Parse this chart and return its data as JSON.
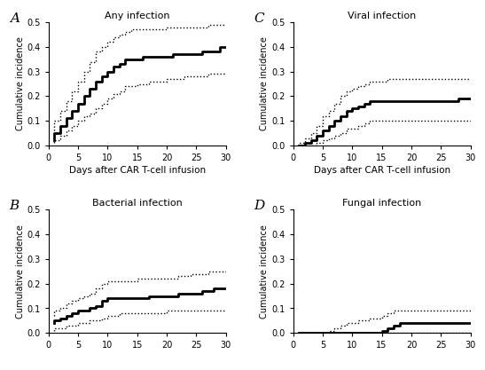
{
  "panels": [
    {
      "label": "A",
      "title": "Any infection",
      "xlabel": "Days after CAR T-cell infusion",
      "ylabel": "Cumulative incidence",
      "show_xlabel": true,
      "main": {
        "x": [
          1,
          2,
          3,
          4,
          5,
          6,
          7,
          8,
          9,
          10,
          11,
          12,
          13,
          14,
          15,
          16,
          17,
          18,
          19,
          20,
          21,
          22,
          23,
          24,
          25,
          26,
          27,
          28,
          29,
          30
        ],
        "y": [
          0.02,
          0.05,
          0.08,
          0.11,
          0.14,
          0.17,
          0.2,
          0.23,
          0.26,
          0.28,
          0.3,
          0.32,
          0.33,
          0.35,
          0.35,
          0.35,
          0.36,
          0.36,
          0.36,
          0.36,
          0.36,
          0.37,
          0.37,
          0.37,
          0.37,
          0.37,
          0.38,
          0.38,
          0.38,
          0.4
        ]
      },
      "upper": {
        "x": [
          1,
          2,
          3,
          4,
          5,
          6,
          7,
          8,
          9,
          10,
          11,
          12,
          13,
          14,
          15,
          16,
          17,
          18,
          19,
          20,
          21,
          22,
          23,
          24,
          25,
          26,
          27,
          28,
          29,
          30
        ],
        "y": [
          0.06,
          0.1,
          0.14,
          0.18,
          0.22,
          0.26,
          0.3,
          0.34,
          0.38,
          0.4,
          0.42,
          0.44,
          0.45,
          0.46,
          0.47,
          0.47,
          0.47,
          0.47,
          0.47,
          0.47,
          0.48,
          0.48,
          0.48,
          0.48,
          0.48,
          0.48,
          0.48,
          0.49,
          0.49,
          0.49
        ]
      },
      "lower": {
        "x": [
          1,
          2,
          3,
          4,
          5,
          6,
          7,
          8,
          9,
          10,
          11,
          12,
          13,
          14,
          15,
          16,
          17,
          18,
          19,
          20,
          21,
          22,
          23,
          24,
          25,
          26,
          27,
          28,
          29,
          30
        ],
        "y": [
          0.01,
          0.02,
          0.04,
          0.06,
          0.08,
          0.1,
          0.12,
          0.13,
          0.15,
          0.17,
          0.19,
          0.21,
          0.22,
          0.24,
          0.24,
          0.25,
          0.25,
          0.26,
          0.26,
          0.26,
          0.27,
          0.27,
          0.27,
          0.28,
          0.28,
          0.28,
          0.28,
          0.29,
          0.29,
          0.29
        ]
      },
      "ylim": [
        0,
        0.5
      ],
      "yticks": [
        0.0,
        0.1,
        0.2,
        0.3,
        0.4,
        0.5
      ]
    },
    {
      "label": "C",
      "title": "Viral infection",
      "xlabel": "Days after CAR T-cell infusion",
      "ylabel": "Cumulative incidence",
      "show_xlabel": true,
      "main": {
        "x": [
          1,
          2,
          3,
          4,
          5,
          6,
          7,
          8,
          9,
          10,
          11,
          12,
          13,
          14,
          15,
          16,
          17,
          18,
          19,
          20,
          21,
          22,
          23,
          24,
          25,
          26,
          27,
          28,
          29,
          30
        ],
        "y": [
          0.0,
          0.0,
          0.01,
          0.02,
          0.04,
          0.06,
          0.08,
          0.1,
          0.12,
          0.14,
          0.15,
          0.16,
          0.17,
          0.18,
          0.18,
          0.18,
          0.18,
          0.18,
          0.18,
          0.18,
          0.18,
          0.18,
          0.18,
          0.18,
          0.18,
          0.18,
          0.18,
          0.18,
          0.19,
          0.19
        ]
      },
      "upper": {
        "x": [
          1,
          2,
          3,
          4,
          5,
          6,
          7,
          8,
          9,
          10,
          11,
          12,
          13,
          14,
          15,
          16,
          17,
          18,
          19,
          20,
          21,
          22,
          23,
          24,
          25,
          26,
          27,
          28,
          29,
          30
        ],
        "y": [
          0.0,
          0.01,
          0.03,
          0.05,
          0.08,
          0.12,
          0.14,
          0.17,
          0.2,
          0.22,
          0.23,
          0.24,
          0.25,
          0.26,
          0.26,
          0.26,
          0.27,
          0.27,
          0.27,
          0.27,
          0.27,
          0.27,
          0.27,
          0.27,
          0.27,
          0.27,
          0.27,
          0.27,
          0.27,
          0.27
        ]
      },
      "lower": {
        "x": [
          1,
          2,
          3,
          4,
          5,
          6,
          7,
          8,
          9,
          10,
          11,
          12,
          13,
          14,
          15,
          16,
          17,
          18,
          19,
          20,
          21,
          22,
          23,
          24,
          25,
          26,
          27,
          28,
          29,
          30
        ],
        "y": [
          0.0,
          0.0,
          0.0,
          0.0,
          0.01,
          0.02,
          0.03,
          0.04,
          0.05,
          0.07,
          0.07,
          0.08,
          0.09,
          0.1,
          0.1,
          0.1,
          0.1,
          0.1,
          0.1,
          0.1,
          0.1,
          0.1,
          0.1,
          0.1,
          0.1,
          0.1,
          0.1,
          0.1,
          0.1,
          0.1
        ]
      },
      "ylim": [
        0,
        0.5
      ],
      "yticks": [
        0.0,
        0.1,
        0.2,
        0.3,
        0.4,
        0.5
      ]
    },
    {
      "label": "B",
      "title": "Bacterial infection",
      "xlabel": "",
      "ylabel": "Cumulative incidence",
      "show_xlabel": false,
      "main": {
        "x": [
          1,
          2,
          3,
          4,
          5,
          6,
          7,
          8,
          9,
          10,
          11,
          12,
          13,
          14,
          15,
          16,
          17,
          18,
          19,
          20,
          21,
          22,
          23,
          24,
          25,
          26,
          27,
          28,
          29,
          30
        ],
        "y": [
          0.04,
          0.05,
          0.06,
          0.07,
          0.08,
          0.09,
          0.09,
          0.1,
          0.11,
          0.13,
          0.14,
          0.14,
          0.14,
          0.14,
          0.14,
          0.14,
          0.14,
          0.15,
          0.15,
          0.15,
          0.15,
          0.15,
          0.16,
          0.16,
          0.16,
          0.16,
          0.17,
          0.17,
          0.18,
          0.18
        ]
      },
      "upper": {
        "x": [
          1,
          2,
          3,
          4,
          5,
          6,
          7,
          8,
          9,
          10,
          11,
          12,
          13,
          14,
          15,
          16,
          17,
          18,
          19,
          20,
          21,
          22,
          23,
          24,
          25,
          26,
          27,
          28,
          29,
          30
        ],
        "y": [
          0.07,
          0.09,
          0.1,
          0.12,
          0.13,
          0.14,
          0.15,
          0.16,
          0.18,
          0.2,
          0.21,
          0.21,
          0.21,
          0.21,
          0.21,
          0.22,
          0.22,
          0.22,
          0.22,
          0.22,
          0.22,
          0.22,
          0.23,
          0.23,
          0.24,
          0.24,
          0.24,
          0.25,
          0.25,
          0.25
        ]
      },
      "lower": {
        "x": [
          1,
          2,
          3,
          4,
          5,
          6,
          7,
          8,
          9,
          10,
          11,
          12,
          13,
          14,
          15,
          16,
          17,
          18,
          19,
          20,
          21,
          22,
          23,
          24,
          25,
          26,
          27,
          28,
          29,
          30
        ],
        "y": [
          0.01,
          0.02,
          0.02,
          0.03,
          0.03,
          0.04,
          0.04,
          0.05,
          0.05,
          0.06,
          0.07,
          0.07,
          0.08,
          0.08,
          0.08,
          0.08,
          0.08,
          0.08,
          0.08,
          0.08,
          0.09,
          0.09,
          0.09,
          0.09,
          0.09,
          0.09,
          0.09,
          0.09,
          0.09,
          0.09
        ]
      },
      "ylim": [
        0,
        0.5
      ],
      "yticks": [
        0.0,
        0.1,
        0.2,
        0.3,
        0.4,
        0.5
      ]
    },
    {
      "label": "D",
      "title": "Fungal infection",
      "xlabel": "",
      "ylabel": "Cumulative incidence",
      "show_xlabel": false,
      "main": {
        "x": [
          1,
          2,
          3,
          4,
          5,
          6,
          7,
          8,
          9,
          10,
          11,
          12,
          13,
          14,
          15,
          16,
          17,
          18,
          19,
          20,
          21,
          22,
          23,
          24,
          25,
          26,
          27,
          28,
          29,
          30
        ],
        "y": [
          0.0,
          0.0,
          0.0,
          0.0,
          0.0,
          0.0,
          0.0,
          0.0,
          0.0,
          0.0,
          0.0,
          0.0,
          0.0,
          0.0,
          0.0,
          0.01,
          0.02,
          0.03,
          0.04,
          0.04,
          0.04,
          0.04,
          0.04,
          0.04,
          0.04,
          0.04,
          0.04,
          0.04,
          0.04,
          0.04
        ]
      },
      "upper": {
        "x": [
          1,
          2,
          3,
          4,
          5,
          6,
          7,
          8,
          9,
          10,
          11,
          12,
          13,
          14,
          15,
          16,
          17,
          18,
          19,
          20,
          21,
          22,
          23,
          24,
          25,
          26,
          27,
          28,
          29,
          30
        ],
        "y": [
          0.0,
          0.0,
          0.0,
          0.0,
          0.0,
          0.0,
          0.01,
          0.02,
          0.03,
          0.04,
          0.04,
          0.05,
          0.05,
          0.06,
          0.06,
          0.07,
          0.08,
          0.09,
          0.09,
          0.09,
          0.09,
          0.09,
          0.09,
          0.09,
          0.09,
          0.09,
          0.09,
          0.09,
          0.09,
          0.09
        ]
      },
      "lower": {
        "x": [
          1,
          2,
          3,
          4,
          5,
          6,
          7,
          8,
          9,
          10,
          11,
          12,
          13,
          14,
          15,
          16,
          17,
          18,
          19,
          20,
          21,
          22,
          23,
          24,
          25,
          26,
          27,
          28,
          29,
          30
        ],
        "y": [
          0.0,
          0.0,
          0.0,
          0.0,
          0.0,
          0.0,
          0.0,
          0.0,
          0.0,
          0.0,
          0.0,
          0.0,
          0.0,
          0.0,
          0.0,
          0.0,
          0.0,
          0.0,
          0.0,
          0.0,
          0.0,
          0.0,
          0.0,
          0.0,
          0.0,
          0.0,
          0.0,
          0.0,
          0.0,
          0.0
        ]
      },
      "ylim": [
        0,
        0.5
      ],
      "yticks": [
        0.0,
        0.1,
        0.2,
        0.3,
        0.4,
        0.5
      ]
    }
  ],
  "main_linewidth": 2.0,
  "ci_linewidth": 1.0,
  "ci_linestyle": "dotted",
  "main_color": "#000000",
  "ci_color": "#000000",
  "background_color": "#ffffff",
  "label_fontsize": 11,
  "title_fontsize": 8,
  "tick_fontsize": 7,
  "axis_label_fontsize": 7.5,
  "ylabel_fontsize": 7
}
